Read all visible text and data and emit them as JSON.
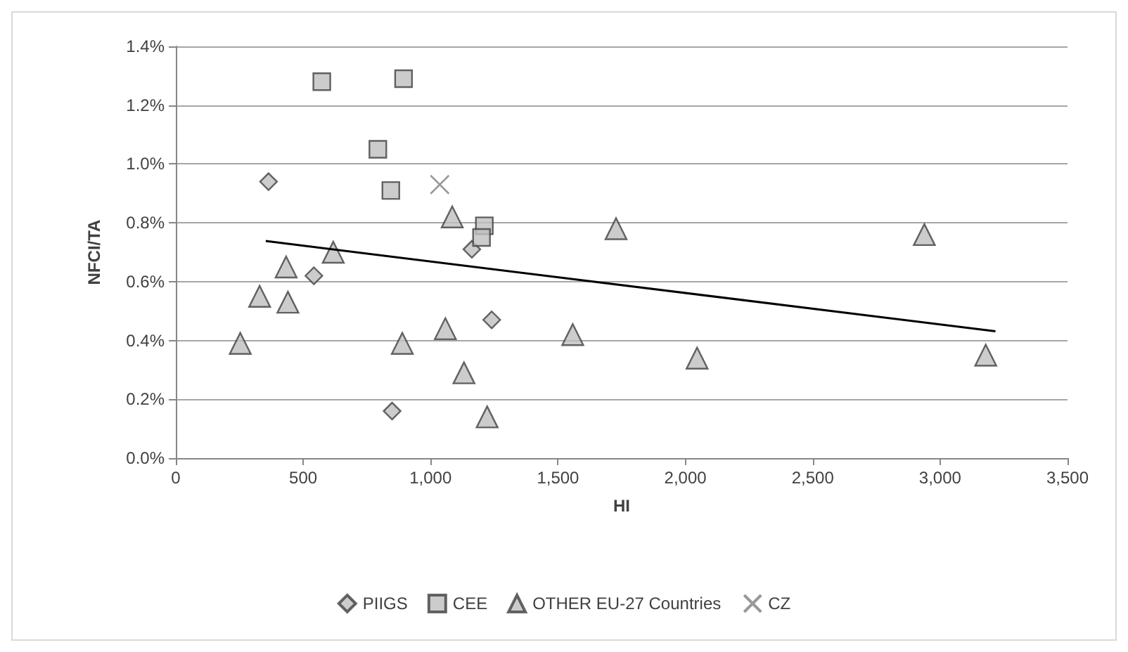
{
  "chart_data": {
    "type": "scatter",
    "xlabel": "HI",
    "ylabel": "NFCI/TA",
    "xlim": [
      0,
      3500
    ],
    "xticks": [
      0,
      {
        "value": 500,
        "label": "500"
      },
      {
        "value": 1000,
        "label": "1,000"
      },
      {
        "value": 1500,
        "label": "1,500"
      },
      {
        "value": 2000,
        "label": "2,000"
      },
      {
        "value": 2500,
        "label": "2,500"
      },
      {
        "value": 3000,
        "label": "3,000"
      },
      {
        "value": 3500,
        "label": "3,500"
      }
    ],
    "ylim": [
      0,
      1.4
    ],
    "yticks": [
      {
        "value": 0,
        "label": "0.0%"
      },
      {
        "value": 0.2,
        "label": "0.2%"
      },
      {
        "value": 0.4,
        "label": "0.4%"
      },
      {
        "value": 0.6,
        "label": "0.6%"
      },
      {
        "value": 0.8,
        "label": "0.8%"
      },
      {
        "value": 1.0,
        "label": "1.0%"
      },
      {
        "value": 1.2,
        "label": "1.2%"
      },
      {
        "value": 1.4,
        "label": "1.4%"
      }
    ],
    "grid": "y",
    "legend": "bottom",
    "series": [
      {
        "name": "PIIGS",
        "color": "#bfbfbf",
        "marker": "diamond",
        "x": [
          364,
          542,
          1162,
          1240,
          849
        ],
        "values": [
          0.94,
          0.62,
          0.71,
          0.47,
          0.16
        ]
      },
      {
        "name": "CEE",
        "color": "#bfbfbf",
        "marker": "square",
        "x": [
          573,
          894,
          793,
          844,
          1211,
          1200
        ],
        "values": [
          1.28,
          1.29,
          1.05,
          0.91,
          0.79,
          0.75
        ]
      },
      {
        "name": "OTHER EU-27 Countries",
        "color": "#bfbfbf",
        "marker": "triangle",
        "x": [
          253,
          329,
          433,
          440,
          618,
          1085,
          889,
          1058,
          1131,
          1222,
          1728,
          1558,
          2046,
          2938,
          3179
        ],
        "values": [
          0.39,
          0.55,
          0.65,
          0.53,
          0.7,
          0.82,
          0.39,
          0.44,
          0.29,
          0.14,
          0.78,
          0.42,
          0.34,
          0.76,
          0.35
        ]
      },
      {
        "name": "CZ",
        "color": "#808080",
        "marker": "cross",
        "x": [
          1036
        ],
        "values": [
          0.93
        ]
      },
      {
        "type": "line",
        "color": "#000000",
        "marker": "none",
        "line_style": "solid",
        "x": [
          353,
          3217
        ],
        "values": [
          0.738,
          0.431
        ]
      }
    ]
  }
}
